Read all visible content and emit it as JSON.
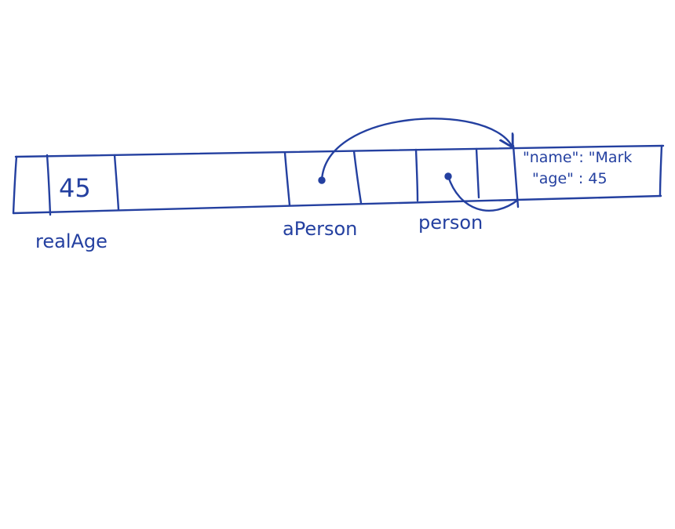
{
  "diagram": {
    "ink_color": "#2440a0",
    "cells": {
      "realAge_value": "45",
      "heap_object_line1": "\"name\": \"Mark",
      "heap_object_line2": "\"age\" : 45"
    },
    "labels": {
      "realAge": "realAge",
      "aPerson": "aPerson",
      "person": "person"
    },
    "references": [
      {
        "from": "aPerson",
        "to": "heap-object"
      },
      {
        "from": "person",
        "to": "heap-object"
      }
    ]
  }
}
